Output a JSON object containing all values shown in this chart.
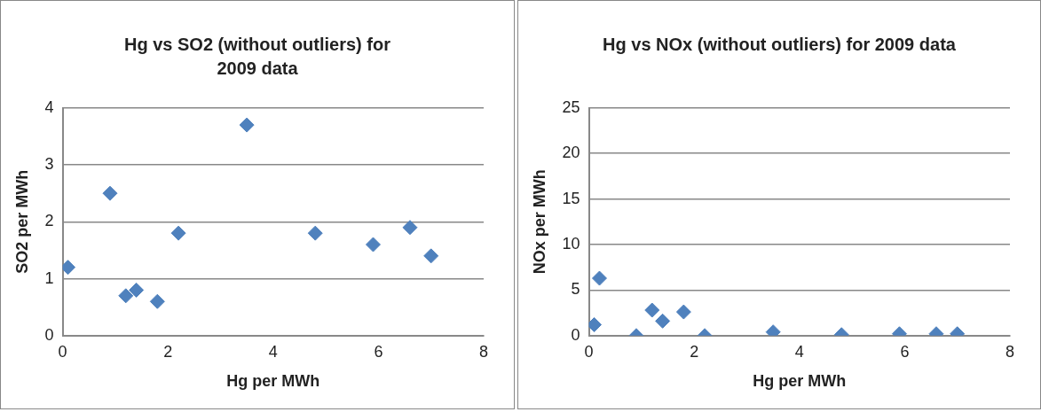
{
  "chart_data": [
    {
      "type": "scatter",
      "title": "Hg vs SO2 (without outliers) for 2009 data",
      "xlabel": "Hg per MWh",
      "ylabel": "SO2 per MWh",
      "x": [
        0.1,
        0.9,
        1.2,
        1.4,
        1.8,
        2.2,
        3.5,
        4.8,
        5.9,
        6.6,
        7.0
      ],
      "series": [
        {
          "color": "#4f81bd",
          "values": [
            1.2,
            2.5,
            0.7,
            0.8,
            0.6,
            1.8,
            3.7,
            1.8,
            1.6,
            1.9,
            1.4
          ]
        }
      ],
      "xlim": [
        0,
        8
      ],
      "xticks": [
        0,
        2,
        4,
        6,
        8
      ],
      "ylim": [
        0,
        4
      ],
      "yticks": [
        0,
        1,
        2,
        3,
        4
      ],
      "grid": "y",
      "legend": false,
      "marker": "diamond"
    },
    {
      "type": "scatter",
      "title": "Hg vs NOx (without outliers) for 2009 data",
      "xlabel": "Hg per MWh",
      "ylabel": "NOx per MWh",
      "x": [
        0.1,
        0.2,
        0.9,
        1.2,
        1.4,
        1.8,
        2.2,
        3.5,
        4.8,
        5.9,
        6.6,
        7.0
      ],
      "series": [
        {
          "color": "#4f81bd",
          "values": [
            1.2,
            6.3,
            0,
            2.8,
            1.6,
            2.6,
            0,
            0.4,
            0.1,
            0.2,
            0.2,
            0.2
          ]
        }
      ],
      "xlim": [
        0,
        8
      ],
      "xticks": [
        0,
        2,
        4,
        6,
        8
      ],
      "ylim": [
        0,
        25
      ],
      "yticks": [
        0,
        5,
        10,
        15,
        20,
        25
      ],
      "grid": "y",
      "legend": false,
      "marker": "diamond"
    }
  ]
}
